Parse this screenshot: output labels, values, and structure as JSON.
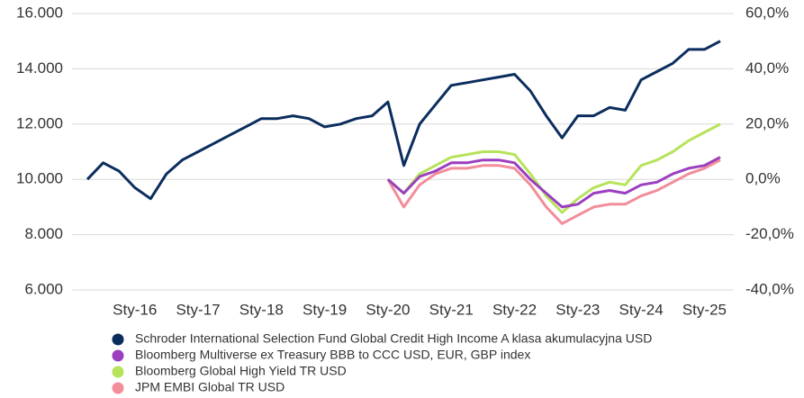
{
  "chart_data": {
    "type": "line",
    "categories": [
      null,
      null,
      null,
      "Sty-16",
      null,
      null,
      null,
      "Sty-17",
      null,
      null,
      null,
      "Sty-18",
      null,
      null,
      null,
      "Sty-19",
      null,
      null,
      null,
      "Sty-20",
      null,
      null,
      null,
      "Sty-21",
      null,
      null,
      null,
      "Sty-22",
      null,
      null,
      null,
      "Sty-23",
      null,
      null,
      null,
      "Sty-24",
      null,
      null,
      null,
      "Sty-25",
      null
    ],
    "series": [
      {
        "name": "Schroder International Selection Fund Global Credit High Income A klasa akumulacyjna USD",
        "color": "#0b2d5e",
        "axis": "y",
        "values": [
          10000,
          10600,
          10300,
          9700,
          9300,
          10200,
          10700,
          11000,
          11300,
          11600,
          11900,
          12200,
          12200,
          12300,
          12200,
          11900,
          12000,
          12200,
          12300,
          12800,
          10500,
          12000,
          12700,
          13400,
          13500,
          13600,
          13700,
          13800,
          13200,
          12300,
          11500,
          12300,
          12300,
          12600,
          12500,
          13600,
          13900,
          14200,
          14700,
          14700,
          15000
        ]
      },
      {
        "name": "Bloomberg Multiverse ex Treasury BBB to CCC USD, EUR, GBP index",
        "color": "#9b3fbf",
        "axis": "y2",
        "values": [
          null,
          null,
          null,
          null,
          null,
          null,
          null,
          null,
          null,
          null,
          null,
          null,
          null,
          null,
          null,
          null,
          null,
          null,
          null,
          0,
          -5,
          1,
          3,
          6,
          6,
          7,
          7,
          6,
          0,
          -5,
          -10,
          -9,
          -5,
          -4,
          -5,
          -2,
          -1,
          2,
          4,
          5,
          8
        ]
      },
      {
        "name": "Bloomberg Global High Yield TR USD",
        "color": "#b6e35a",
        "axis": "y2",
        "values": [
          null,
          null,
          null,
          null,
          null,
          null,
          null,
          null,
          null,
          null,
          null,
          null,
          null,
          null,
          null,
          null,
          null,
          null,
          null,
          0,
          -5,
          2,
          5,
          8,
          9,
          10,
          10,
          9,
          2,
          -6,
          -12,
          -7,
          -3,
          -1,
          -2,
          5,
          7,
          10,
          14,
          17,
          20
        ]
      },
      {
        "name": "JPM EMBI Global TR USD",
        "color": "#f28d9a",
        "axis": "y2",
        "values": [
          null,
          null,
          null,
          null,
          null,
          null,
          null,
          null,
          null,
          null,
          null,
          null,
          null,
          null,
          null,
          null,
          null,
          null,
          null,
          0,
          -10,
          -2,
          2,
          4,
          4,
          5,
          5,
          4,
          -2,
          -10,
          -16,
          -13,
          -10,
          -9,
          -9,
          -6,
          -4,
          -1,
          2,
          4,
          7
        ]
      }
    ],
    "ylim": [
      6000,
      16000
    ],
    "yticks": [
      {
        "value": 6000,
        "label": "6.000"
      },
      {
        "value": 8000,
        "label": "8.000"
      },
      {
        "value": 10000,
        "label": "10.000"
      },
      {
        "value": 12000,
        "label": "12.000"
      },
      {
        "value": 14000,
        "label": "14.000"
      },
      {
        "value": 16000,
        "label": "16.000"
      }
    ],
    "y2lim": [
      -40,
      60
    ],
    "y2ticks": [
      {
        "value": -40,
        "label": "-40,0%"
      },
      {
        "value": -20,
        "label": "-20,0%"
      },
      {
        "value": 0,
        "label": "0,0%"
      },
      {
        "value": 20,
        "label": "20,0%"
      },
      {
        "value": 40,
        "label": "40,0%"
      },
      {
        "value": 60,
        "label": "60,0%"
      }
    ],
    "grid": true,
    "legend": "bottom"
  }
}
